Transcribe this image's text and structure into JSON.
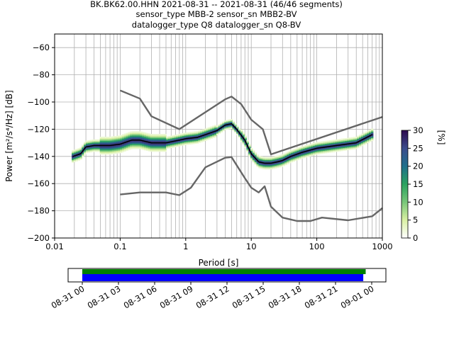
{
  "title_lines": [
    "BK.BK62.00.HHN   2021-08-31 -- 2021-08-31  (46/46 segments)",
    "sensor_type MBB-2 sensor_sn MBB2-BV",
    "datalogger_type Q8 datalogger_sn Q8-BV"
  ],
  "chart_data": [
    {
      "type": "heatmap",
      "title": "BK.BK62.00.HHN   2021-08-31 -- 2021-08-31  (46/46 segments)",
      "xlabel": "Period [s]",
      "ylabel": "Power [m²/s⁴/Hz] [dB]",
      "xscale": "log",
      "xlim": [
        0.01,
        1000
      ],
      "ylim": [
        -200,
        -50
      ],
      "xticks": [
        0.01,
        0.1,
        1,
        10,
        100,
        1000
      ],
      "xtick_labels": [
        "0.01",
        "0.1",
        "1",
        "10",
        "100",
        "1000"
      ],
      "yticks": [
        -200,
        -180,
        -160,
        -140,
        -120,
        -100,
        -80,
        -60
      ],
      "ytick_labels": [
        "−200",
        "−180",
        "−160",
        "−140",
        "−120",
        "−100",
        "−80",
        "−60"
      ],
      "grid": true,
      "colorbar": {
        "label": "[%]",
        "range": [
          0,
          30
        ],
        "ticks": [
          0,
          5,
          10,
          15,
          20,
          25,
          30
        ],
        "colors": [
          "#ffffff",
          "#d9f0a3",
          "#78c679",
          "#2ca25f",
          "#1f6f8b",
          "#3b4c8c",
          "#2d0a4e"
        ]
      },
      "series": [
        {
          "name": "",
          "color": "#000000",
          "x": [
            0.019,
            0.025,
            0.03,
            0.04,
            0.05,
            0.07,
            0.1,
            0.15,
            0.2,
            0.3,
            0.5,
            0.8,
            1,
            1.5,
            2,
            3,
            4,
            5,
            6,
            8,
            10,
            13,
            16,
            20,
            25,
            30,
            40,
            60,
            100,
            200,
            400,
            700
          ],
          "y": [
            -140,
            -138,
            -133,
            -132,
            -132,
            -132,
            -131,
            -128,
            -128,
            -130,
            -130,
            -128,
            -127,
            -126,
            -124,
            -121,
            -117,
            -116,
            -120,
            -128,
            -138,
            -144,
            -145,
            -145,
            -144,
            -143,
            -140,
            -137,
            -134,
            -132,
            -130,
            -124
          ]
        },
        {
          "name": "",
          "color": "#666666",
          "x": [
            0.1,
            0.2,
            0.3,
            0.8,
            4,
            5,
            7,
            10,
            15,
            20,
            1000
          ],
          "y": [
            -91.5,
            -97.5,
            -110.5,
            -120,
            -98,
            -96,
            -101.5,
            -113,
            -120,
            -138.5,
            -111
          ]
        },
        {
          "name": "",
          "color": "#666666",
          "x": [
            0.1,
            0.2,
            0.5,
            0.8,
            1.2,
            2,
            4,
            5,
            8,
            10,
            13,
            16,
            20,
            30,
            50,
            80,
            120,
            300,
            700,
            1000
          ],
          "y": [
            -168,
            -166.5,
            -166.5,
            -168.5,
            -163,
            -148,
            -141,
            -140.5,
            -156,
            -163,
            -166.5,
            -162,
            -177,
            -185,
            -187.5,
            -187.5,
            -185,
            -187,
            -184,
            -178
          ]
        }
      ]
    },
    {
      "type": "bar",
      "title": "",
      "xlabel": "",
      "xtick_labels": [
        "08-31 00",
        "08-31 03",
        "08-31 06",
        "08-31 09",
        "08-31 12",
        "08-31 15",
        "08-31 18",
        "08-31 21",
        "09-01 00"
      ],
      "series": [
        {
          "name": "",
          "color": "#008000",
          "start_hours": 0,
          "end_hours": 23.5
        },
        {
          "name": "",
          "color": "#0000ff",
          "start_hours": 0,
          "end_hours": 23.3
        }
      ]
    }
  ]
}
